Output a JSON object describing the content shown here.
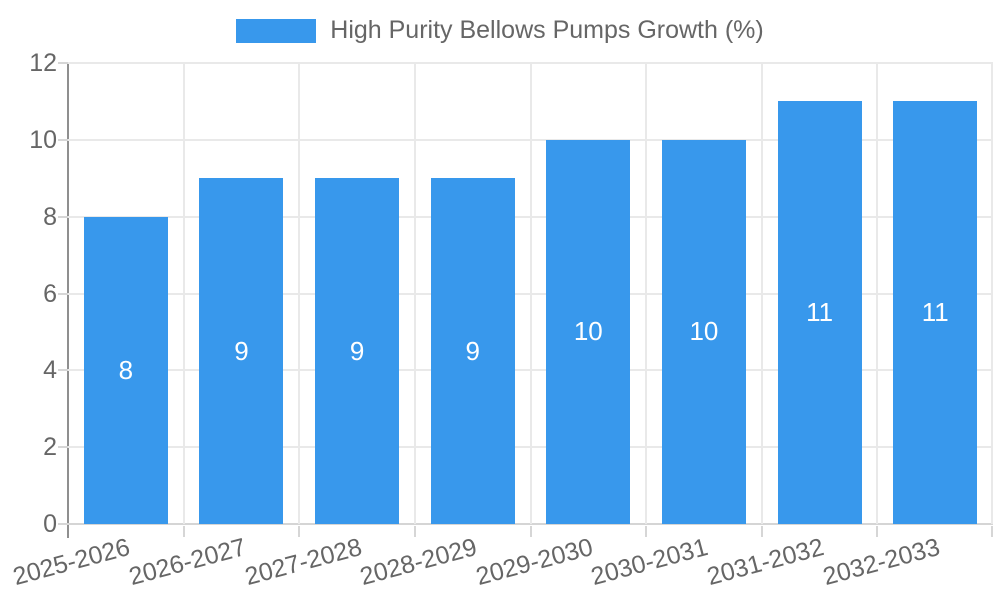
{
  "legend": {
    "label": "High Purity Bellows Pumps Growth (%)"
  },
  "chart_data": {
    "type": "bar",
    "title": "High Purity Bellows Pumps Growth (%)",
    "categories": [
      "2025-2026",
      "2026-2027",
      "2027-2028",
      "2028-2029",
      "2029-2030",
      "2030-2031",
      "2031-2032",
      "2032-2033"
    ],
    "values": [
      8,
      9,
      9,
      9,
      10,
      10,
      11,
      11
    ],
    "bar_labels": [
      "8",
      "9",
      "9",
      "9",
      "10",
      "10",
      "11",
      "11"
    ],
    "xlabel": "",
    "ylabel": "",
    "ylim": [
      0,
      12
    ],
    "yticks": [
      0,
      2,
      4,
      6,
      8,
      10,
      12
    ],
    "grid": true,
    "legend_position": "top",
    "bar_color": "#3898ec",
    "value_label_color": "#ffffff",
    "tick_label_color": "#666666",
    "gridline_color": "#e9e9e9",
    "axis_line_color": "#8f8f8f"
  }
}
